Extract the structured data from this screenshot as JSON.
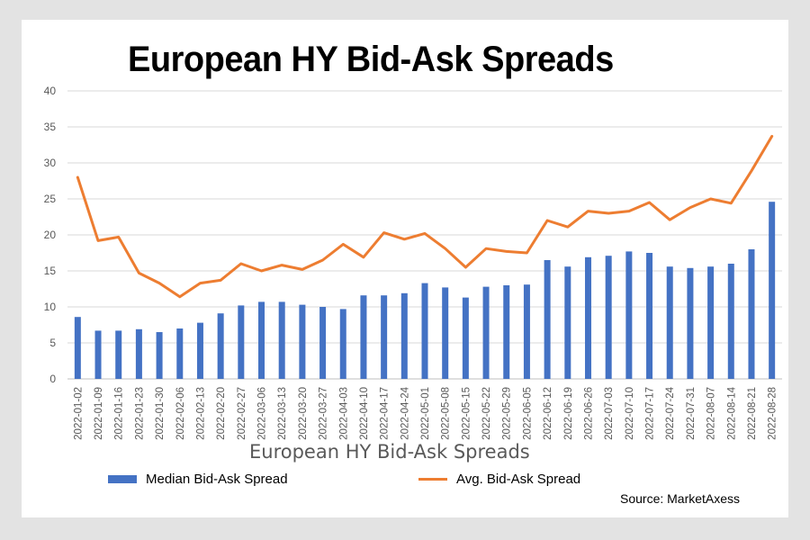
{
  "header_title": "European HY Bid-Ask Spreads",
  "source": "Source: MarketAxess",
  "colors": {
    "bar": "#4472c4",
    "line": "#ed7d31",
    "grid": "#d9d9d9"
  },
  "chart_data": {
    "type": "bar",
    "title": "European HY Bid-Ask Spreads",
    "xlabel": "",
    "ylabel": "",
    "ylim": [
      0,
      40
    ],
    "yticks": [
      0,
      5,
      10,
      15,
      20,
      25,
      30,
      35,
      40
    ],
    "grid": true,
    "legend_position": "bottom",
    "categories": [
      "2022-01-02",
      "2022-01-09",
      "2022-01-16",
      "2022-01-23",
      "2022-01-30",
      "2022-02-06",
      "2022-02-13",
      "2022-02-20",
      "2022-02-27",
      "2022-03-06",
      "2022-03-13",
      "2022-03-20",
      "2022-03-27",
      "2022-04-03",
      "2022-04-10",
      "2022-04-17",
      "2022-04-24",
      "2022-05-01",
      "2022-05-08",
      "2022-05-15",
      "2022-05-22",
      "2022-05-29",
      "2022-06-05",
      "2022-06-12",
      "2022-06-19",
      "2022-06-26",
      "2022-07-03",
      "2022-07-10",
      "2022-07-17",
      "2022-07-24",
      "2022-07-31",
      "2022-08-07",
      "2022-08-14",
      "2022-08-21",
      "2022-08-28"
    ],
    "series": [
      {
        "name": "Median Bid-Ask Spread",
        "type": "bar",
        "values": [
          8.6,
          6.7,
          6.7,
          6.9,
          6.5,
          7.0,
          7.8,
          9.1,
          10.2,
          10.7,
          10.7,
          10.3,
          10.0,
          9.7,
          11.6,
          11.6,
          11.9,
          13.3,
          12.7,
          11.3,
          12.8,
          13.0,
          13.1,
          16.5,
          15.6,
          16.9,
          17.1,
          17.7,
          17.5,
          15.6,
          15.4,
          15.6,
          16.0,
          18.0,
          24.6
        ]
      },
      {
        "name": "Avg. Bid-Ask Spread",
        "type": "line",
        "values": [
          28.0,
          19.2,
          19.7,
          14.7,
          13.3,
          11.4,
          13.3,
          13.7,
          16.0,
          15.0,
          15.8,
          15.2,
          16.5,
          18.7,
          16.9,
          20.3,
          19.4,
          20.2,
          18.1,
          15.5,
          18.1,
          17.7,
          17.5,
          22.0,
          21.1,
          23.3,
          23.0,
          23.3,
          24.5,
          22.1,
          23.8,
          25.0,
          24.4,
          28.9,
          33.7
        ]
      }
    ]
  }
}
